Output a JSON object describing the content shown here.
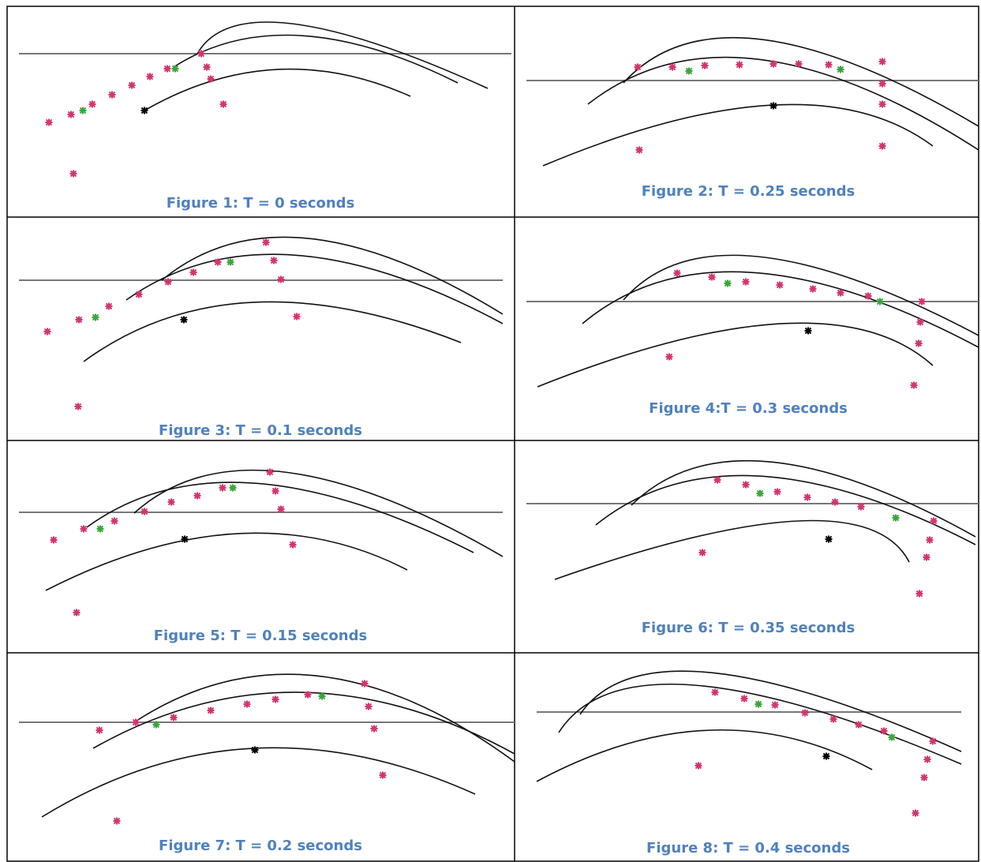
{
  "figures": [
    {
      "caption": "Figure 1: T = 0 seconds"
    },
    {
      "caption": "Figure 2: T = 0.25 seconds"
    },
    {
      "caption": "Figure 3: T = 0.1 seconds"
    },
    {
      "caption": "Figure 4:T = 0.3 seconds"
    },
    {
      "caption": "Figure 5: T = 0.15 seconds"
    },
    {
      "caption": "Figure 6: T = 0.35 seconds"
    },
    {
      "caption": "Figure 7: T = 0.2 seconds"
    },
    {
      "caption": "Figure 8: T = 0.4 seconds"
    }
  ]
}
